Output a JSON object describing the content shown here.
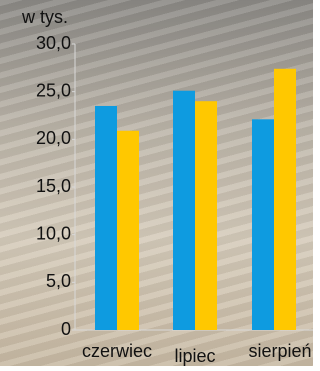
{
  "chart_data": {
    "type": "bar",
    "y_label": "w tys.",
    "categories": [
      "czerwiec",
      "lipiec",
      "sierpień"
    ],
    "series": [
      {
        "color": "#0e9be0",
        "values": [
          23.5,
          25.1,
          22.1
        ]
      },
      {
        "color": "#ffc800",
        "values": [
          20.9,
          24.0,
          27.4
        ]
      }
    ],
    "ylim": [
      0,
      30
    ],
    "yticks": [
      0,
      {
        "value": 5,
        "label": "5,0"
      },
      {
        "value": 10,
        "label": "10,0"
      },
      {
        "value": 15,
        "label": "15,0"
      },
      {
        "value": 20,
        "label": "20,0"
      },
      {
        "value": 25,
        "label": "25,0"
      },
      {
        "value": 30,
        "label": "30,0"
      }
    ],
    "grid": false
  }
}
